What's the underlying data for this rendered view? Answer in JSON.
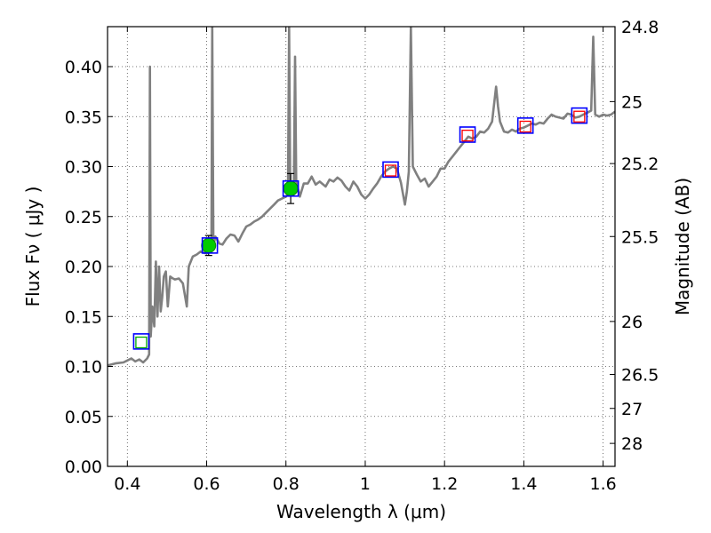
{
  "chart_data": {
    "type": "line",
    "title": "",
    "xlabel": "Wavelength  λ (μm)",
    "ylabel": "Flux  Fν  ( μJy )",
    "ylabel_right": "Magnitude (AB)",
    "xlim": [
      0.35,
      1.63
    ],
    "ylim": [
      0.0,
      0.44
    ],
    "grid": true,
    "x_ticks": [
      0.4,
      0.6,
      0.8,
      1.0,
      1.2,
      1.4,
      1.6
    ],
    "x_tick_labels": [
      "0.4",
      "0.6",
      "0.8",
      "1",
      "1.2",
      "1.4",
      "1.6"
    ],
    "y_ticks": [
      0.0,
      0.05,
      0.1,
      0.15,
      0.2,
      0.25,
      0.3,
      0.35,
      0.4
    ],
    "y_tick_labels": [
      "0.00",
      "0.05",
      "0.10",
      "0.15",
      "0.20",
      "0.25",
      "0.30",
      "0.35",
      "0.40"
    ],
    "right_ticks": [
      {
        "label": "24.8",
        "flux": 0.44
      },
      {
        "label": "25",
        "flux": 0.365
      },
      {
        "label": "25.2",
        "flux": 0.303
      },
      {
        "label": "25.5",
        "flux": 0.23
      },
      {
        "label": "26",
        "flux": 0.145
      },
      {
        "label": "26.5",
        "flux": 0.092
      },
      {
        "label": "27",
        "flux": 0.058
      },
      {
        "label": "28",
        "flux": 0.023
      }
    ],
    "series": [
      {
        "type": "line",
        "color": "#808080",
        "points": [
          [
            0.35,
            0.101
          ],
          [
            0.37,
            0.103
          ],
          [
            0.39,
            0.104
          ],
          [
            0.4,
            0.106
          ],
          [
            0.41,
            0.108
          ],
          [
            0.42,
            0.105
          ],
          [
            0.43,
            0.107
          ],
          [
            0.44,
            0.104
          ],
          [
            0.45,
            0.108
          ],
          [
            0.455,
            0.112
          ],
          [
            0.457,
            0.4
          ],
          [
            0.459,
            0.13
          ],
          [
            0.463,
            0.16
          ],
          [
            0.468,
            0.14
          ],
          [
            0.472,
            0.205
          ],
          [
            0.476,
            0.15
          ],
          [
            0.48,
            0.2
          ],
          [
            0.484,
            0.155
          ],
          [
            0.488,
            0.17
          ],
          [
            0.492,
            0.19
          ],
          [
            0.497,
            0.195
          ],
          [
            0.502,
            0.16
          ],
          [
            0.508,
            0.19
          ],
          [
            0.515,
            0.188
          ],
          [
            0.52,
            0.187
          ],
          [
            0.53,
            0.188
          ],
          [
            0.54,
            0.183
          ],
          [
            0.55,
            0.16
          ],
          [
            0.555,
            0.2
          ],
          [
            0.565,
            0.21
          ],
          [
            0.575,
            0.212
          ],
          [
            0.585,
            0.215
          ],
          [
            0.59,
            0.214
          ],
          [
            0.6,
            0.213
          ],
          [
            0.607,
            0.216
          ],
          [
            0.612,
            0.218
          ],
          [
            0.614,
            0.44
          ],
          [
            0.617,
            0.22
          ],
          [
            0.622,
            0.23
          ],
          [
            0.632,
            0.223
          ],
          [
            0.64,
            0.222
          ],
          [
            0.65,
            0.228
          ],
          [
            0.66,
            0.232
          ],
          [
            0.67,
            0.231
          ],
          [
            0.68,
            0.225
          ],
          [
            0.69,
            0.233
          ],
          [
            0.7,
            0.24
          ],
          [
            0.71,
            0.242
          ],
          [
            0.72,
            0.245
          ],
          [
            0.73,
            0.247
          ],
          [
            0.74,
            0.25
          ],
          [
            0.75,
            0.254
          ],
          [
            0.76,
            0.258
          ],
          [
            0.77,
            0.262
          ],
          [
            0.78,
            0.266
          ],
          [
            0.79,
            0.268
          ],
          [
            0.8,
            0.27
          ],
          [
            0.805,
            0.272
          ],
          [
            0.808,
            0.44
          ],
          [
            0.811,
            0.275
          ],
          [
            0.816,
            0.28
          ],
          [
            0.82,
            0.285
          ],
          [
            0.823,
            0.41
          ],
          [
            0.826,
            0.285
          ],
          [
            0.835,
            0.27
          ],
          [
            0.845,
            0.283
          ],
          [
            0.855,
            0.283
          ],
          [
            0.865,
            0.29
          ],
          [
            0.875,
            0.282
          ],
          [
            0.885,
            0.285
          ],
          [
            0.9,
            0.28
          ],
          [
            0.91,
            0.287
          ],
          [
            0.92,
            0.285
          ],
          [
            0.93,
            0.289
          ],
          [
            0.94,
            0.286
          ],
          [
            0.95,
            0.28
          ],
          [
            0.96,
            0.276
          ],
          [
            0.97,
            0.285
          ],
          [
            0.98,
            0.28
          ],
          [
            0.99,
            0.272
          ],
          [
            1.0,
            0.268
          ],
          [
            1.01,
            0.272
          ],
          [
            1.02,
            0.278
          ],
          [
            1.03,
            0.283
          ],
          [
            1.04,
            0.29
          ],
          [
            1.05,
            0.295
          ],
          [
            1.06,
            0.298
          ],
          [
            1.07,
            0.3
          ],
          [
            1.08,
            0.298
          ],
          [
            1.09,
            0.284
          ],
          [
            1.1,
            0.262
          ],
          [
            1.105,
            0.275
          ],
          [
            1.11,
            0.295
          ],
          [
            1.115,
            0.44
          ],
          [
            1.12,
            0.3
          ],
          [
            1.13,
            0.292
          ],
          [
            1.14,
            0.285
          ],
          [
            1.15,
            0.288
          ],
          [
            1.16,
            0.28
          ],
          [
            1.17,
            0.285
          ],
          [
            1.18,
            0.29
          ],
          [
            1.19,
            0.298
          ],
          [
            1.2,
            0.298
          ],
          [
            1.21,
            0.305
          ],
          [
            1.22,
            0.31
          ],
          [
            1.23,
            0.315
          ],
          [
            1.24,
            0.32
          ],
          [
            1.25,
            0.325
          ],
          [
            1.26,
            0.33
          ],
          [
            1.27,
            0.328
          ],
          [
            1.28,
            0.33
          ],
          [
            1.29,
            0.335
          ],
          [
            1.3,
            0.334
          ],
          [
            1.31,
            0.338
          ],
          [
            1.32,
            0.345
          ],
          [
            1.33,
            0.38
          ],
          [
            1.335,
            0.36
          ],
          [
            1.34,
            0.345
          ],
          [
            1.35,
            0.335
          ],
          [
            1.36,
            0.334
          ],
          [
            1.37,
            0.337
          ],
          [
            1.38,
            0.335
          ],
          [
            1.39,
            0.338
          ],
          [
            1.4,
            0.339
          ],
          [
            1.41,
            0.341
          ],
          [
            1.42,
            0.343
          ],
          [
            1.43,
            0.342
          ],
          [
            1.44,
            0.344
          ],
          [
            1.45,
            0.343
          ],
          [
            1.46,
            0.348
          ],
          [
            1.47,
            0.352
          ],
          [
            1.48,
            0.35
          ],
          [
            1.49,
            0.349
          ],
          [
            1.5,
            0.348
          ],
          [
            1.51,
            0.353
          ],
          [
            1.52,
            0.352
          ],
          [
            1.53,
            0.349
          ],
          [
            1.54,
            0.35
          ],
          [
            1.55,
            0.352
          ],
          [
            1.56,
            0.354
          ],
          [
            1.57,
            0.356
          ],
          [
            1.575,
            0.43
          ],
          [
            1.58,
            0.352
          ],
          [
            1.59,
            0.35
          ],
          [
            1.6,
            0.352
          ],
          [
            1.61,
            0.351
          ],
          [
            1.62,
            0.352
          ],
          [
            1.63,
            0.355
          ]
        ]
      },
      {
        "type": "blue_squares",
        "color": "#0000ff",
        "points": [
          [
            0.435,
            0.125
          ],
          [
            0.608,
            0.221
          ],
          [
            0.812,
            0.278
          ],
          [
            1.064,
            0.297
          ],
          [
            1.258,
            0.332
          ],
          [
            1.404,
            0.341
          ],
          [
            1.54,
            0.351
          ]
        ]
      },
      {
        "type": "red_squares",
        "color": "#ff0000",
        "points": [
          [
            1.064,
            0.296
          ],
          [
            1.258,
            0.331
          ],
          [
            1.404,
            0.34
          ],
          [
            1.54,
            0.35
          ]
        ]
      },
      {
        "type": "green_open_square",
        "color": "#00aa00",
        "points": [
          [
            0.435,
            0.124
          ]
        ]
      },
      {
        "type": "green_dots_errorbar",
        "color": "#00cc00",
        "points": [
          {
            "x": 0.605,
            "y": 0.221,
            "err": 0.01
          },
          {
            "x": 0.812,
            "y": 0.278,
            "err": 0.015
          }
        ]
      }
    ]
  }
}
